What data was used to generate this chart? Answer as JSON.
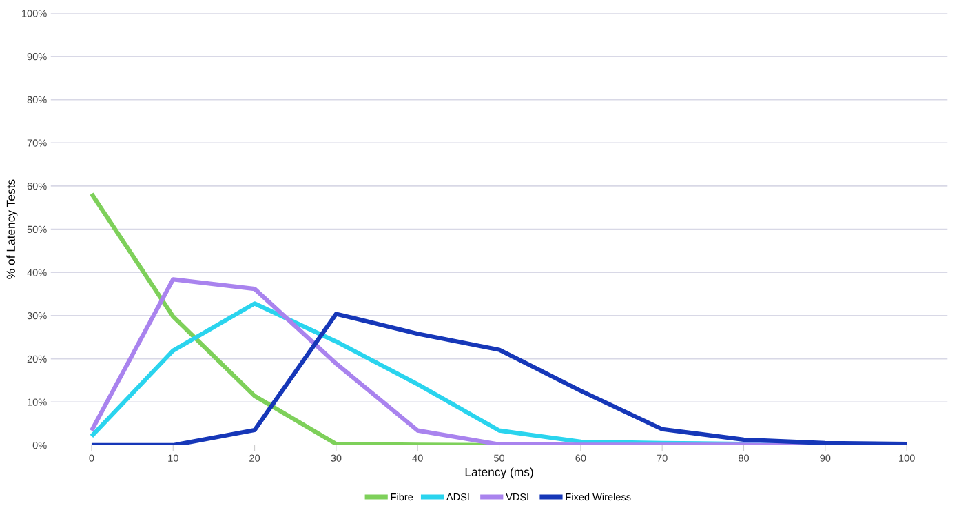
{
  "chart_data": {
    "type": "line",
    "xlabel": "Latency (ms)",
    "ylabel": "% of Latency Tests",
    "x": [
      0,
      10,
      20,
      30,
      40,
      50,
      60,
      70,
      80,
      90,
      100
    ],
    "series": [
      {
        "name": "Fibre",
        "color": "#7ed05a",
        "values": [
          58.2,
          29.8,
          11.4,
          0.3,
          0.1,
          0,
          0,
          null,
          null,
          null,
          null
        ]
      },
      {
        "name": "ADSL",
        "color": "#2ad4ee",
        "values": [
          2.1,
          21.9,
          32.8,
          24,
          14.1,
          3.4,
          0.8,
          0.5,
          0.3,
          0.1,
          0
        ]
      },
      {
        "name": "VDSL",
        "color": "#a983ee",
        "values": [
          3.4,
          38.4,
          36.2,
          18.9,
          3.4,
          0.2,
          0.1,
          0.1,
          0.1,
          0,
          0
        ]
      },
      {
        "name": "Fixed Wireless",
        "color": "#1637b8",
        "values": [
          0,
          0,
          3.5,
          30.4,
          25.8,
          22.1,
          12.6,
          3.7,
          1.3,
          0.5,
          0.3
        ]
      }
    ],
    "xlim": [
      -5,
      105
    ],
    "xticks": [
      0,
      10,
      20,
      30,
      40,
      50,
      60,
      70,
      80,
      90,
      100
    ],
    "ylim": [
      0,
      100
    ],
    "yticks": [
      {
        "value": 0,
        "label": "0%"
      },
      {
        "value": 10,
        "label": "10%"
      },
      {
        "value": 20,
        "label": "20%"
      },
      {
        "value": 30,
        "label": "30%"
      },
      {
        "value": 40,
        "label": "40%"
      },
      {
        "value": 50,
        "label": "50%"
      },
      {
        "value": 60,
        "label": "60%"
      },
      {
        "value": 70,
        "label": "70%"
      },
      {
        "value": 80,
        "label": "80%"
      },
      {
        "value": 90,
        "label": "90%"
      },
      {
        "value": 100,
        "label": "100%"
      }
    ],
    "grid": "y",
    "legend": "bottom",
    "marker": "none",
    "line_style": "solid"
  }
}
